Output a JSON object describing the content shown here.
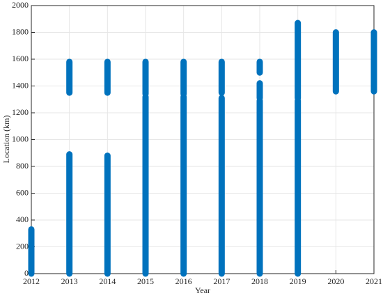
{
  "chart_data": {
    "type": "range",
    "x_label": "Year",
    "y_label": "Location (km)",
    "color": "#0072BD",
    "grid": true,
    "xlim": [
      2012,
      2021
    ],
    "xticks": [
      2012,
      2013,
      2014,
      2015,
      2016,
      2017,
      2018,
      2019,
      2020,
      2021
    ],
    "ylim": [
      0,
      2000
    ],
    "yticks": [
      0,
      200,
      400,
      600,
      800,
      1000,
      1200,
      1400,
      1600,
      1800,
      2000
    ],
    "segments": [
      {
        "x": 2012,
        "start": 0,
        "end": 330
      },
      {
        "x": 2013,
        "start": 0,
        "end": 890
      },
      {
        "x": 2013,
        "start": 1350,
        "end": 1580
      },
      {
        "x": 2014,
        "start": 0,
        "end": 880
      },
      {
        "x": 2014,
        "start": 1350,
        "end": 1580
      },
      {
        "x": 2015,
        "start": 0,
        "end": 1320
      },
      {
        "x": 2015,
        "start": 1340,
        "end": 1580
      },
      {
        "x": 2016,
        "start": 0,
        "end": 1320
      },
      {
        "x": 2016,
        "start": 1340,
        "end": 1580
      },
      {
        "x": 2017,
        "start": 0,
        "end": 1310
      },
      {
        "x": 2017,
        "start": 1350,
        "end": 1580
      },
      {
        "x": 2018,
        "start": 0,
        "end": 1290
      },
      {
        "x": 2018,
        "start": 1310,
        "end": 1420
      },
      {
        "x": 2018,
        "start": 1500,
        "end": 1580
      },
      {
        "x": 2019,
        "start": 0,
        "end": 1290
      },
      {
        "x": 2019,
        "start": 1310,
        "end": 1870
      },
      {
        "x": 2020,
        "start": 1360,
        "end": 1800
      },
      {
        "x": 2021,
        "start": 1360,
        "end": 1800
      }
    ]
  }
}
